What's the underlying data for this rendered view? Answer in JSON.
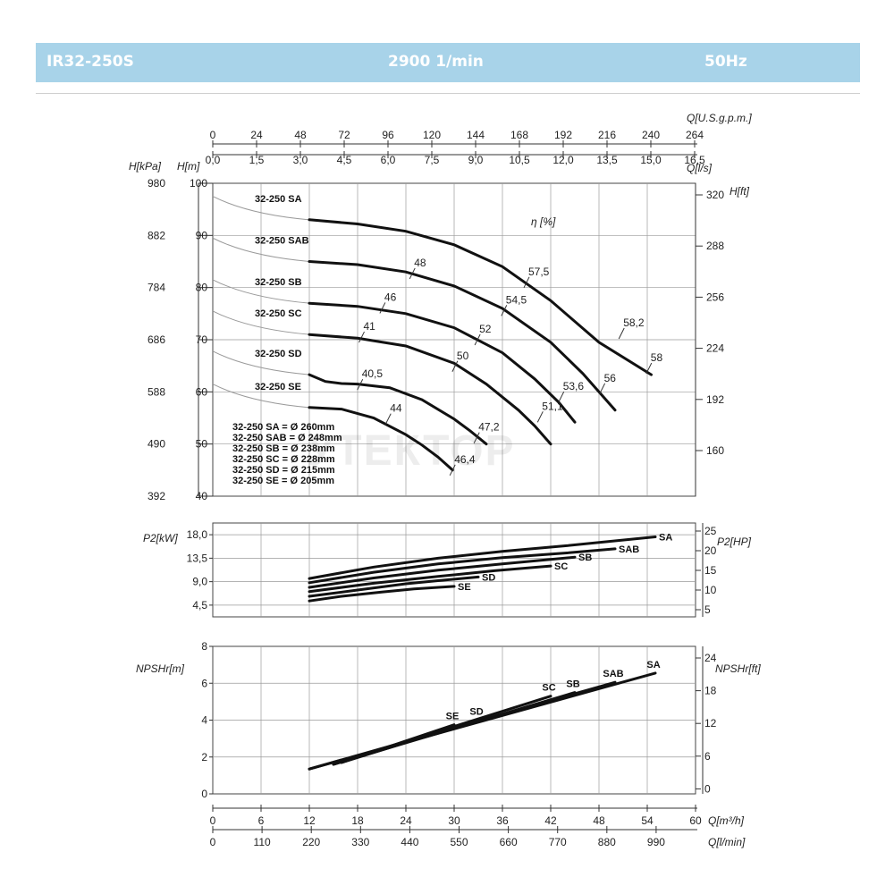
{
  "header": {
    "model": "IR32-250S",
    "speed": "2900 1/min",
    "frequency": "50Hz"
  },
  "axes": {
    "q_usgpm": {
      "label": "Q[U.S.g.p.m.]",
      "ticks": [
        "0",
        "24",
        "48",
        "72",
        "96",
        "120",
        "144",
        "168",
        "192",
        "216",
        "240",
        "264"
      ]
    },
    "q_ls": {
      "label": "Q[l/s]",
      "ticks": [
        "0,0",
        "1,5",
        "3,0",
        "4,5",
        "6,0",
        "7,5",
        "9,0",
        "10,5",
        "12,0",
        "13,5",
        "15,0",
        "16,5"
      ]
    },
    "q_m3h": {
      "label": "Q[m³/h]",
      "ticks": [
        "0",
        "6",
        "12",
        "18",
        "24",
        "30",
        "36",
        "42",
        "48",
        "54",
        "60"
      ]
    },
    "q_lmin": {
      "label": "Q[l/min]",
      "ticks": [
        "0",
        "110",
        "220",
        "330",
        "440",
        "550",
        "660",
        "770",
        "880",
        "990"
      ]
    },
    "h_m": {
      "label": "H[m]",
      "ticks": [
        "100",
        "90",
        "80",
        "70",
        "60",
        "50",
        "40"
      ]
    },
    "h_kpa": {
      "label": "H[kPa]",
      "ticks": [
        "980",
        "882",
        "784",
        "686",
        "588",
        "490",
        "392"
      ]
    },
    "h_ft": {
      "label": "H[ft]",
      "ticks": [
        "320",
        "288",
        "256",
        "224",
        "192",
        "160"
      ]
    },
    "p2_kw": {
      "label": "P2[kW]",
      "ticks": [
        "18,0",
        "13,5",
        "9,0",
        "4,5"
      ]
    },
    "p2_hp": {
      "label": "P2[HP]",
      "ticks": [
        "25",
        "20",
        "15",
        "10",
        "5"
      ]
    },
    "npsh_m": {
      "label": "NPSHr[m]",
      "ticks": [
        "8",
        "6",
        "4",
        "2",
        "0"
      ]
    },
    "npsh_ft": {
      "label": "NPSHr[ft]",
      "ticks": [
        "24",
        "18",
        "12",
        "6",
        "0"
      ]
    }
  },
  "efficiency_label": "η [%]",
  "watermark": "УТЕКТОР",
  "impeller_legend": [
    "32-250 SA = Ø 260mm",
    "32-250 SAB = Ø 248mm",
    "32-250 SB = Ø 238mm",
    "32-250 SC = Ø 228mm",
    "32-250 SD = Ø 215mm",
    "32-250 SE = Ø 205mm"
  ],
  "chart_data": [
    {
      "type": "line",
      "title": "",
      "xlabel": "Q[m³/h]",
      "ylabel": "H[m]",
      "xlim": [
        0,
        60
      ],
      "ylim": [
        40,
        100
      ],
      "series": [
        {
          "name": "32-250 SA",
          "x": [
            12,
            18,
            24,
            30,
            36,
            42,
            48,
            54.5
          ],
          "y": [
            93,
            92.2,
            90.8,
            88.2,
            84,
            77.5,
            69.5,
            63.3
          ]
        },
        {
          "name": "32-250 SAB",
          "x": [
            12,
            18,
            24,
            30,
            36,
            42,
            46,
            50
          ],
          "y": [
            85,
            84.4,
            83,
            80.3,
            76,
            69.5,
            63.5,
            56.5
          ]
        },
        {
          "name": "32-250 SB",
          "x": [
            12,
            18,
            24,
            30,
            36,
            40,
            43,
            45
          ],
          "y": [
            77,
            76.4,
            75,
            72.3,
            67.5,
            62.5,
            58,
            54.2
          ]
        },
        {
          "name": "32-250 SC",
          "x": [
            12,
            18,
            24,
            30,
            34,
            38,
            40,
            42
          ],
          "y": [
            71,
            70.3,
            68.8,
            65.5,
            61.5,
            56.5,
            53.5,
            50
          ]
        },
        {
          "name": "32-250 SD",
          "x": [
            12,
            14,
            16,
            18,
            22,
            26,
            30,
            32,
            34
          ],
          "y": [
            63.3,
            62,
            61.6,
            61.5,
            60.8,
            58.5,
            54.8,
            52.5,
            50
          ]
        },
        {
          "name": "32-250 SE",
          "x": [
            12,
            16,
            20,
            24,
            26,
            28,
            29.8
          ],
          "y": [
            57,
            56.7,
            55,
            51.8,
            49.8,
            47.5,
            45
          ]
        }
      ],
      "efficiency_points": [
        {
          "label": "57,5",
          "x": 39,
          "y": 81
        },
        {
          "label": "58,2",
          "x": 50.8,
          "y": 71.2
        },
        {
          "label": "58",
          "x": 54.2,
          "y": 64.5
        },
        {
          "label": "48",
          "x": 24.8,
          "y": 82.7
        },
        {
          "label": "54,5",
          "x": 36.2,
          "y": 75.6
        },
        {
          "label": "56",
          "x": 48.4,
          "y": 60.6
        },
        {
          "label": "46",
          "x": 21.1,
          "y": 76.1
        },
        {
          "label": "52",
          "x": 32.9,
          "y": 70
        },
        {
          "label": "53,6",
          "x": 43.3,
          "y": 59
        },
        {
          "label": "41",
          "x": 18.5,
          "y": 70.5
        },
        {
          "label": "50",
          "x": 30.1,
          "y": 64.9
        },
        {
          "label": "51,1",
          "x": 40.7,
          "y": 55.2
        },
        {
          "label": "40,5",
          "x": 18.3,
          "y": 61.4
        },
        {
          "label": "47,2",
          "x": 32.8,
          "y": 51.2
        },
        {
          "label": "44",
          "x": 21.8,
          "y": 54.8
        },
        {
          "label": "46,4",
          "x": 29.8,
          "y": 45
        }
      ]
    },
    {
      "type": "line",
      "title": "",
      "xlabel": "Q[m³/h]",
      "ylabel": "P2[kW]",
      "xlim": [
        0,
        60
      ],
      "ylim": [
        2.25,
        20.25
      ],
      "series": [
        {
          "name": "SA",
          "x": [
            12,
            20,
            28,
            36,
            44,
            55
          ],
          "y": [
            9.6,
            11.8,
            13.5,
            14.8,
            15.9,
            17.6
          ]
        },
        {
          "name": "SAB",
          "x": [
            12,
            20,
            28,
            36,
            44,
            50
          ],
          "y": [
            8.8,
            10.8,
            12.4,
            13.6,
            14.5,
            15.3
          ]
        },
        {
          "name": "SB",
          "x": [
            12,
            20,
            28,
            36,
            45
          ],
          "y": [
            7.9,
            9.7,
            11.2,
            12.4,
            13.7
          ]
        },
        {
          "name": "SC",
          "x": [
            12,
            20,
            28,
            35,
            42
          ],
          "y": [
            7.1,
            8.7,
            10,
            11.1,
            12
          ]
        },
        {
          "name": "SD",
          "x": [
            12,
            18,
            24,
            28,
            33
          ],
          "y": [
            6.2,
            7.4,
            8.6,
            9.2,
            9.9
          ]
        },
        {
          "name": "SE",
          "x": [
            12,
            16,
            21,
            25,
            30
          ],
          "y": [
            5.3,
            6.2,
            7,
            7.6,
            8.1
          ]
        }
      ]
    },
    {
      "type": "line",
      "title": "",
      "xlabel": "Q[m³/h]",
      "ylabel": "NPSHr[m]",
      "xlim": [
        0,
        60
      ],
      "ylim": [
        0,
        8
      ],
      "series": [
        {
          "name": "SA",
          "x": [
            12,
            55
          ],
          "y": [
            1.35,
            6.55
          ]
        },
        {
          "name": "SAB",
          "x": [
            12,
            50
          ],
          "y": [
            1.35,
            6.05
          ]
        },
        {
          "name": "SB",
          "x": [
            15,
            45
          ],
          "y": [
            1.6,
            5.5
          ]
        },
        {
          "name": "SC",
          "x": [
            15,
            42
          ],
          "y": [
            1.6,
            5.3
          ]
        },
        {
          "name": "SD",
          "x": [
            16,
            33
          ],
          "y": [
            1.7,
            4.0
          ]
        },
        {
          "name": "SE",
          "x": [
            16,
            30
          ],
          "y": [
            1.7,
            3.75
          ]
        }
      ]
    }
  ]
}
